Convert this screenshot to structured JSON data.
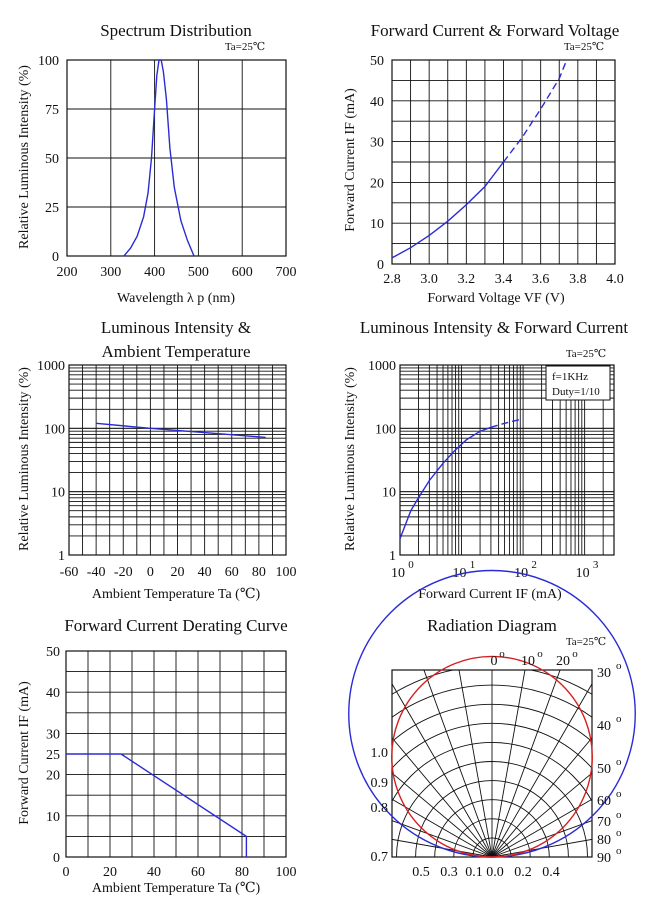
{
  "colors": {
    "curve": "#2b2bd6",
    "curve_red": "#d62020",
    "ink": "#111111"
  },
  "chart_data": [
    {
      "id": "spectrum",
      "type": "line",
      "title": "Spectrum Distribution",
      "annotation": "Ta=25℃",
      "xlabel": "Wavelength  λ p (nm)",
      "ylabel": "Relative Luminous Intensity (%)",
      "xlim": [
        200,
        700
      ],
      "ylim": [
        0,
        100
      ],
      "xticks": [
        "200",
        "300",
        "400",
        "500",
        "600",
        "700"
      ],
      "yticks": [
        "0",
        "25",
        "50",
        "75",
        "100"
      ],
      "series": [
        {
          "x": [
            330,
            345,
            360,
            375,
            385,
            393,
            400,
            405,
            410,
            415,
            420,
            427,
            435,
            445,
            460,
            475,
            490
          ],
          "y": [
            0,
            4,
            10,
            20,
            32,
            50,
            75,
            92,
            100,
            100,
            94,
            80,
            55,
            35,
            18,
            8,
            0
          ]
        }
      ]
    },
    {
      "id": "iv",
      "type": "line",
      "title": "Forward Current & Forward Voltage",
      "annotation": "Ta=25℃",
      "xlabel": "Forward Voltage  VF (V)",
      "ylabel": "Forward Current IF (mA)",
      "xlim": [
        2.8,
        4.0
      ],
      "ylim": [
        0,
        50
      ],
      "xticks": [
        "2.8",
        "3.0",
        "3.2",
        "3.4",
        "3.6",
        "3.8",
        "4.0"
      ],
      "yticks": [
        "0",
        "10",
        "20",
        "30",
        "40",
        "50"
      ],
      "series": [
        {
          "style": "solid",
          "x": [
            2.8,
            2.9,
            3.0,
            3.1,
            3.2,
            3.3,
            3.4
          ],
          "y": [
            1.5,
            4,
            7,
            10.5,
            14.5,
            19,
            25
          ]
        },
        {
          "style": "dashed",
          "x": [
            3.4,
            3.5,
            3.6,
            3.7,
            3.74
          ],
          "y": [
            25,
            31,
            38,
            45.5,
            50
          ]
        }
      ]
    },
    {
      "id": "iv-temp",
      "type": "line",
      "title": "Luminous Intensity &",
      "subtitle": "Ambient Temperature",
      "xlabel": "Ambient Temperature Ta (℃)",
      "ylabel": "Relative Luminous Intensity (%)",
      "xlim": [
        -60,
        100
      ],
      "ylim": [
        1,
        1000
      ],
      "yscale": "log",
      "xticks": [
        "-60",
        "-40",
        "-20",
        "0",
        "20",
        "40",
        "60",
        "80",
        "100"
      ],
      "yticks": [
        "1",
        "10",
        "100",
        "1000"
      ],
      "series": [
        {
          "x": [
            -40,
            0,
            85
          ],
          "y": [
            120,
            100,
            72
          ]
        }
      ]
    },
    {
      "id": "iv-current",
      "type": "line",
      "title": "Luminous Intensity & Forward Current",
      "annotation": "Ta=25℃",
      "legend_note": [
        "f=1KHz",
        "Duty=1/10"
      ],
      "xlabel": "Forward Current IF (mA)",
      "ylabel": "Relative Luminous Intensity (%)",
      "xlim": [
        1,
        3000
      ],
      "ylim": [
        1,
        1000
      ],
      "xscale": "log",
      "yscale": "log",
      "xticks": [
        {
          "base": "10",
          "exp": "0"
        },
        {
          "base": "10",
          "exp": "1"
        },
        {
          "base": "10",
          "exp": "2"
        },
        {
          "base": "10",
          "exp": "3"
        }
      ],
      "yticks": [
        "1",
        "10",
        "100",
        "1000"
      ],
      "series": [
        {
          "style": "solid",
          "x": [
            1,
            1.5,
            2,
            3,
            5,
            8,
            12,
            20,
            30
          ],
          "y": [
            1.8,
            5,
            8,
            15,
            28,
            46,
            66,
            90,
            104
          ]
        },
        {
          "style": "dashed",
          "x": [
            30,
            50,
            70,
            100
          ],
          "y": [
            104,
            120,
            130,
            142
          ]
        }
      ]
    },
    {
      "id": "derating",
      "type": "line",
      "title": "Forward Current Derating Curve",
      "xlabel": "Ambient Temperature Ta (℃)",
      "ylabel": "Forward Current IF (mA)",
      "xlim": [
        0,
        100
      ],
      "ylim": [
        0,
        50
      ],
      "xticks": [
        "0",
        "20",
        "40",
        "60",
        "80",
        "100"
      ],
      "yticks": [
        "0",
        "10",
        "20",
        "25",
        "30",
        "40",
        "50"
      ],
      "series": [
        {
          "x": [
            0,
            25,
            82,
            82
          ],
          "y": [
            25,
            25,
            5,
            0
          ]
        }
      ]
    },
    {
      "id": "radiation",
      "type": "polar",
      "title": "Radiation Diagram",
      "annotation": "Ta=25℃",
      "top_angles": [
        {
          "v": "0",
          "u": "o"
        },
        {
          "v": "10",
          "u": "o"
        },
        {
          "v": "20",
          "u": "o"
        }
      ],
      "right_angles": [
        {
          "v": "30",
          "u": "o"
        },
        {
          "v": "40",
          "u": "o"
        },
        {
          "v": "50",
          "u": "o"
        },
        {
          "v": "60",
          "u": "o"
        },
        {
          "v": "70",
          "u": "o"
        },
        {
          "v": "80",
          "u": "o"
        },
        {
          "v": "90",
          "u": "o"
        }
      ],
      "left_ticks": [
        "1.0",
        "0.9",
        "0.8",
        "0.7"
      ],
      "bottom_ticks": [
        "0.5",
        "0.3",
        "0.1",
        "0.0",
        "0.2",
        "0.4"
      ],
      "series": [
        {
          "name": "",
          "color": "blue",
          "shape": "circle",
          "diameter": 1.0
        },
        {
          "name": "",
          "color": "red",
          "shape": "circle",
          "diameter": 0.7
        }
      ]
    }
  ]
}
